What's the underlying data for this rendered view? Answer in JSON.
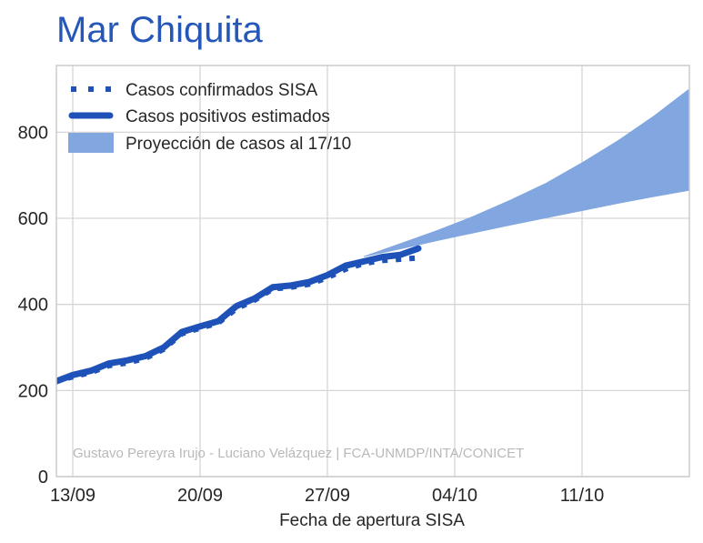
{
  "chart_data": {
    "type": "line",
    "title": "Mar Chiquita",
    "xlabel": "Fecha de apertura SISA",
    "ylabel": "",
    "x_ticks": [
      "13/09",
      "20/09",
      "27/09",
      "04/10",
      "11/10"
    ],
    "x_tick_day_index": [
      0,
      7,
      14,
      21,
      28
    ],
    "y_ticks": [
      0,
      200,
      400,
      600,
      800
    ],
    "ylim": [
      0,
      955
    ],
    "grid": true,
    "legend_position": "top-left",
    "series": [
      {
        "name": "Casos confirmados SISA",
        "style": "dotted",
        "color": "#1f52b8",
        "x": [
          -1,
          0,
          1,
          2,
          3,
          4,
          5,
          6,
          7,
          8,
          9,
          10,
          11,
          12,
          13,
          14,
          15,
          16,
          17,
          18,
          19
        ],
        "y": [
          220,
          232,
          242,
          258,
          264,
          275,
          296,
          332,
          345,
          357,
          390,
          410,
          436,
          440,
          447,
          462,
          482,
          495,
          502,
          505,
          508
        ]
      },
      {
        "name": "Casos positivos estimados",
        "style": "solid",
        "color": "#1f52b8",
        "x": [
          -1,
          0,
          1,
          2,
          3,
          4,
          5,
          6,
          7,
          8,
          9,
          10,
          11,
          12,
          13,
          14,
          15,
          16,
          17,
          18,
          19
        ],
        "y": [
          220,
          236,
          246,
          263,
          270,
          280,
          300,
          336,
          349,
          361,
          396,
          414,
          440,
          444,
          452,
          468,
          490,
          500,
          510,
          515,
          530
        ]
      }
    ],
    "band": {
      "name": "Proyección de casos al 17/10",
      "color": "#82a6e0",
      "x": [
        16,
        18,
        20,
        22,
        24,
        26,
        28,
        30,
        32,
        34
      ],
      "lower": [
        510,
        528,
        547,
        565,
        583,
        600,
        617,
        634,
        650,
        665
      ],
      "upper": [
        512,
        542,
        572,
        605,
        642,
        682,
        730,
        782,
        840,
        905
      ]
    },
    "watermark": "Gustavo Pereyra Irujo - Luciano Velázquez | FCA-UNMDP/INTA/CONICET"
  }
}
